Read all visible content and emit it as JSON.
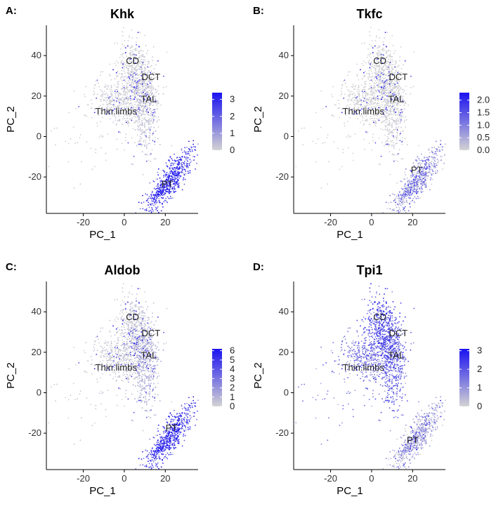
{
  "colors": {
    "low": "#d3d3d3",
    "high": "#1a12f0",
    "axis": "#000000"
  },
  "chart_data": [
    {
      "panel_label": "A:",
      "type": "scatter",
      "title": "Khk",
      "xlabel": "PC_1",
      "ylabel": "PC_2",
      "xlim": [
        -38,
        36
      ],
      "ylim": [
        -38,
        55
      ],
      "xticks": [
        -20,
        0,
        20
      ],
      "yticks": [
        -20,
        0,
        20,
        40
      ],
      "legend": {
        "position": "right",
        "ticks": [
          0,
          1,
          2,
          3
        ],
        "min": 0,
        "max": 3.4
      },
      "annotations": [
        {
          "text": "CD",
          "x": 4,
          "y": 36
        },
        {
          "text": "DCT",
          "x": 13,
          "y": 28
        },
        {
          "text": "TAL",
          "x": 12,
          "y": 17
        },
        {
          "text": "Thin.limbs",
          "x": -4,
          "y": 11
        },
        {
          "text": "PT",
          "x": 21,
          "y": -25
        }
      ],
      "expression": {
        "CD": 0.15,
        "DCT": 0.3,
        "TAL": 0.35,
        "Thin": 0.15,
        "PT": 2.8
      }
    },
    {
      "panel_label": "B:",
      "type": "scatter",
      "title": "Tkfc",
      "xlabel": "PC_1",
      "ylabel": "PC_2",
      "xlim": [
        -38,
        36
      ],
      "ylim": [
        -38,
        55
      ],
      "xticks": [
        -20,
        0,
        20
      ],
      "yticks": [
        -20,
        0,
        20,
        40
      ],
      "legend": {
        "position": "right",
        "ticks": [
          "0.0",
          "0.5",
          "1.0",
          "1.5",
          "2.0"
        ],
        "min": 0,
        "max": 2.3
      },
      "annotations": [
        {
          "text": "CD",
          "x": 4,
          "y": 36
        },
        {
          "text": "DCT",
          "x": 13,
          "y": 28
        },
        {
          "text": "TAL",
          "x": 12,
          "y": 17
        },
        {
          "text": "Thin.limbs",
          "x": -4,
          "y": 11
        },
        {
          "text": "PT",
          "x": 22,
          "y": -18
        }
      ],
      "expression": {
        "CD": 0.05,
        "DCT": 0.08,
        "TAL": 0.1,
        "Thin": 0.05,
        "PT": 0.9
      }
    },
    {
      "panel_label": "C:",
      "type": "scatter",
      "title": "Aldob",
      "xlabel": "PC_1",
      "ylabel": "PC_2",
      "xlim": [
        -38,
        36
      ],
      "ylim": [
        -38,
        55
      ],
      "xticks": [
        -20,
        0,
        20
      ],
      "yticks": [
        -20,
        0,
        20,
        40
      ],
      "legend": {
        "position": "right",
        "ticks": [
          0,
          1,
          2,
          3,
          4,
          5,
          6
        ],
        "min": 0,
        "max": 6.2
      },
      "annotations": [
        {
          "text": "CD",
          "x": 4,
          "y": 36
        },
        {
          "text": "DCT",
          "x": 13,
          "y": 28
        },
        {
          "text": "TAL",
          "x": 12,
          "y": 17
        },
        {
          "text": "Thin.limbs",
          "x": -4,
          "y": 11
        },
        {
          "text": "PT",
          "x": 23,
          "y": -19
        }
      ],
      "expression": {
        "CD": 0.5,
        "DCT": 1.2,
        "TAL": 1.0,
        "Thin": 0.4,
        "PT": 4.8
      }
    },
    {
      "panel_label": "D:",
      "type": "scatter",
      "title": "Tpi1",
      "xlabel": "PC_1",
      "ylabel": "PC_2",
      "xlim": [
        -38,
        36
      ],
      "ylim": [
        -38,
        55
      ],
      "xticks": [
        -20,
        0,
        20
      ],
      "yticks": [
        -20,
        0,
        20,
        40
      ],
      "legend": {
        "position": "right",
        "ticks": [
          0,
          1,
          2,
          3
        ],
        "min": 0,
        "max": 3.1
      },
      "annotations": [
        {
          "text": "CD",
          "x": 4,
          "y": 36
        },
        {
          "text": "DCT",
          "x": 13,
          "y": 28
        },
        {
          "text": "TAL",
          "x": 12,
          "y": 17
        },
        {
          "text": "Thin.limbs",
          "x": -4,
          "y": 11
        },
        {
          "text": "PT",
          "x": 20,
          "y": -25
        }
      ],
      "expression": {
        "CD": 1.9,
        "DCT": 1.7,
        "TAL": 1.5,
        "Thin": 1.3,
        "PT": 0.9
      }
    }
  ]
}
